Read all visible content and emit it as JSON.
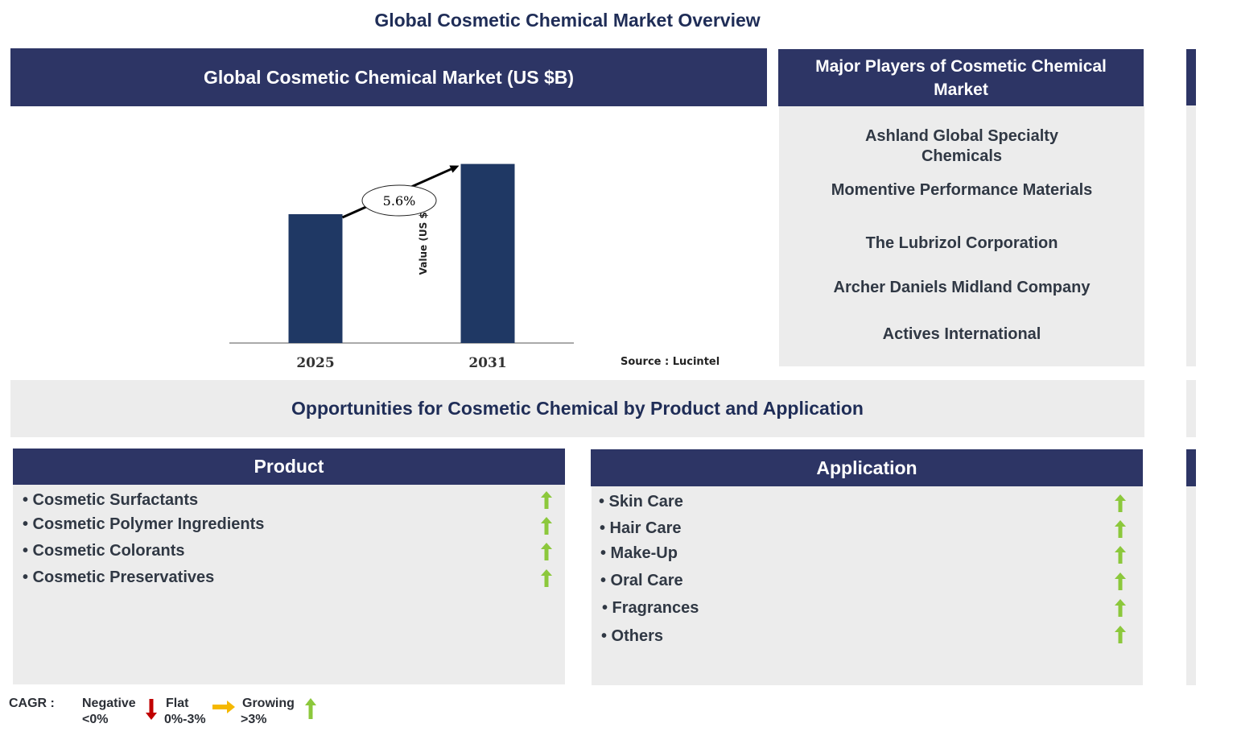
{
  "page_title": "Global Cosmetic Chemical Market Overview",
  "chart_header": "Global Cosmetic Chemical Market (US $B)",
  "chart_data": {
    "type": "bar",
    "categories": [
      "2025",
      "2031"
    ],
    "values": [
      1.0,
      1.39
    ],
    "ylabel": "Value (US $B)",
    "ylim": [
      0,
      1.5
    ],
    "grid": false,
    "annotation": "5.6%",
    "bar_color": "#1f3864"
  },
  "source": "Source : Lucintel",
  "players": {
    "title": "Major Players of Cosmetic Chemical Market",
    "items": [
      "Ashland Global Specialty Chemicals",
      "Momentive Performance Materials",
      "The Lubrizol Corporation",
      "Archer Daniels Midland Company",
      "Actives International"
    ]
  },
  "opportunities_title": "Opportunities for Cosmetic Chemical by Product and Application",
  "product": {
    "title": "Product",
    "items": [
      "• Cosmetic Surfactants",
      "• Cosmetic Polymer Ingredients",
      "• Cosmetic Colorants",
      "• Cosmetic Preservatives"
    ],
    "trend": "growing"
  },
  "application": {
    "title": "Application",
    "items": [
      "• Skin Care",
      "• Hair Care",
      "• Make-Up",
      "• Oral Care",
      "• Fragrances",
      "• Others"
    ],
    "trend": "growing"
  },
  "legend": {
    "label": "CAGR :",
    "negative": "Negative",
    "negative_range": "<0%",
    "flat": "Flat",
    "flat_range": "0%-3%",
    "growing": "Growing",
    "growing_range": ">3%"
  },
  "colors": {
    "header_navy": "#2d3565",
    "panel_gray": "#ececec",
    "arrow_green": "#8cc83c",
    "arrow_red": "#c00000",
    "arrow_yellow": "#f5b800"
  }
}
